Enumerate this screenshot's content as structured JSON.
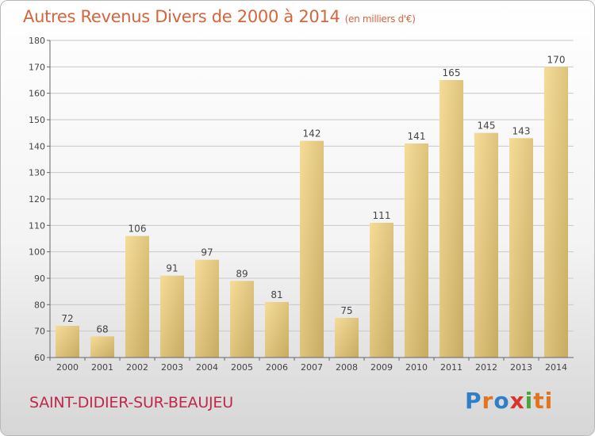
{
  "header": {
    "title": "Autres Revenus Divers de 2000 à 2014",
    "unit": "(en milliers d'€)"
  },
  "footer": {
    "place": "SAINT-DIDIER-SUR-BEAUJEU",
    "logo_letters": [
      "P",
      "r",
      "o",
      "x",
      "i",
      "ti"
    ]
  },
  "colors": {
    "title": "#d4653d",
    "place": "#c0284a",
    "bar_light": "#f5dc98",
    "bar_dark": "#c7ab62",
    "grid": "#c8c8c8"
  },
  "chart_data": {
    "type": "bar",
    "title": "Autres Revenus Divers de 2000 à 2014",
    "xlabel": "",
    "ylabel": "",
    "categories": [
      "2000",
      "2001",
      "2002",
      "2003",
      "2004",
      "2005",
      "2006",
      "2007",
      "2008",
      "2009",
      "2010",
      "2011",
      "2012",
      "2013",
      "2014"
    ],
    "values": [
      72,
      68,
      106,
      91,
      97,
      89,
      81,
      142,
      75,
      111,
      141,
      165,
      145,
      143,
      170
    ],
    "ylim": [
      60,
      180
    ],
    "yticks": [
      60,
      70,
      80,
      90,
      100,
      110,
      120,
      130,
      140,
      150,
      160,
      170,
      180
    ],
    "grid": true,
    "data_labels": true
  }
}
